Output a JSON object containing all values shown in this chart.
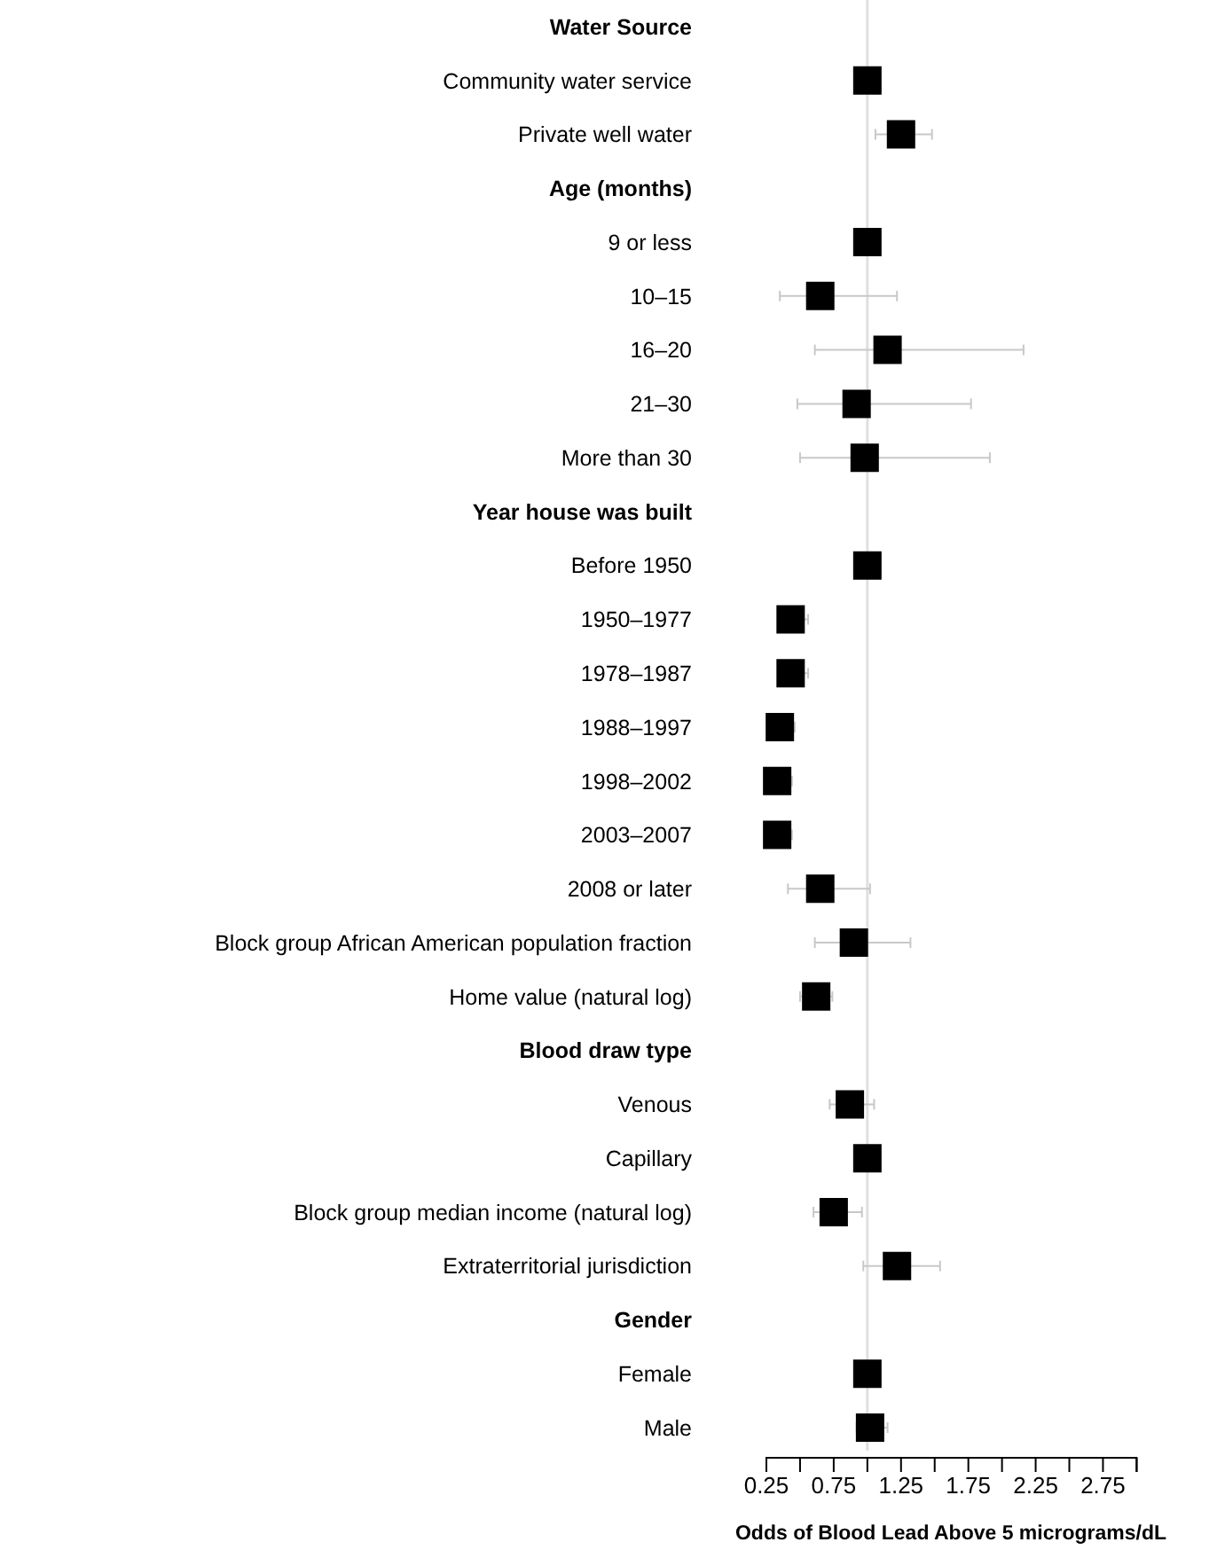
{
  "chart_data": {
    "type": "scatter",
    "orientation": "horizontal",
    "marker": "square",
    "color": "#000000",
    "grid": false,
    "xlabel": "Odds of Blood Lead Above 5 micrograms/dL",
    "categories": [
      "Water Source",
      "Community water service",
      "Private well water",
      "Age (months)",
      "9 or less",
      "10–15",
      "16–20",
      "21–30",
      "More than 30",
      "Year house was built",
      "Before 1950",
      "1950–1977",
      "1978–1987",
      "1988–1997",
      "1998–2002",
      "2003–2007",
      "2008 or later",
      "Block group African American population fraction",
      "Home value (natural log)",
      "Blood draw type",
      "Venous",
      "Capillary",
      "Block group median income (natural log)",
      "Extraterritorial jurisdiction",
      "Gender",
      "Female",
      "Male"
    ],
    "values": [
      null,
      1.0,
      1.25,
      null,
      1.0,
      0.65,
      1.15,
      0.92,
      0.98,
      null,
      1.0,
      0.43,
      0.43,
      0.35,
      0.33,
      0.33,
      0.65,
      0.9,
      0.62,
      null,
      0.87,
      1.0,
      0.75,
      1.22,
      null,
      1.0,
      1.02
    ],
    "errors": [
      null,
      null,
      [
        1.06,
        1.48
      ],
      null,
      null,
      [
        0.35,
        1.22
      ],
      [
        0.61,
        2.16
      ],
      [
        0.48,
        1.77
      ],
      [
        0.5,
        1.91
      ],
      null,
      null,
      [
        0.35,
        0.56
      ],
      [
        0.35,
        0.56
      ],
      [
        0.27,
        0.46
      ],
      [
        0.25,
        0.44
      ],
      [
        0.25,
        0.44
      ],
      [
        0.41,
        1.02
      ],
      [
        0.61,
        1.32
      ],
      [
        0.5,
        0.74
      ],
      null,
      [
        0.72,
        1.05
      ],
      null,
      [
        0.6,
        0.96
      ],
      [
        0.97,
        1.54
      ],
      null,
      null,
      [
        0.92,
        1.15
      ]
    ],
    "xlim": [
      0.25,
      3.0
    ],
    "xticks": [
      0.25,
      {
        "value": 0.5,
        "label": null
      },
      0.75,
      {
        "value": 1.0,
        "label": null
      },
      1.25,
      {
        "value": 1.5,
        "label": null
      },
      1.75,
      {
        "value": 2.0,
        "label": null
      },
      2.25,
      {
        "value": 2.5,
        "label": null
      },
      2.75,
      {
        "value": 3.0,
        "label": null
      }
    ],
    "ref_lines": [
      {
        "axis": "x",
        "value": 1,
        "color": "#e0e0e0"
      }
    ]
  }
}
